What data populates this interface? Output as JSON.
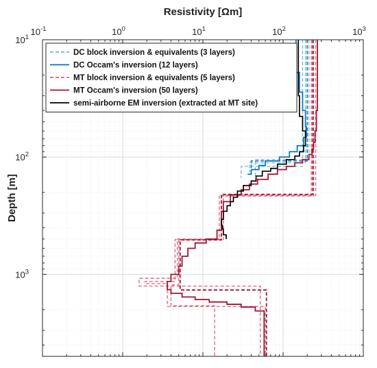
{
  "chart_data": {
    "type": "line",
    "xlabel": "Resistivity [Ωm]",
    "ylabel": "Depth [m]",
    "x_scale": "log",
    "y_scale": "log",
    "y_inverted": true,
    "xlim": [
      0.1,
      1000
    ],
    "ylim": [
      10,
      5000
    ],
    "x_ticks": [
      {
        "v": 0.1,
        "base": "10",
        "exp": "-1"
      },
      {
        "v": 1,
        "base": "10",
        "exp": "0"
      },
      {
        "v": 10,
        "base": "10",
        "exp": "1"
      },
      {
        "v": 100,
        "base": "10",
        "exp": "2"
      },
      {
        "v": 1000,
        "base": "10",
        "exp": "3"
      }
    ],
    "y_ticks": [
      {
        "v": 10,
        "base": "10",
        "exp": "1"
      },
      {
        "v": 100,
        "base": "10",
        "exp": "2"
      },
      {
        "v": 1000,
        "base": "10",
        "exp": "3"
      }
    ],
    "grid": true,
    "legend_position": "top-left",
    "colors": {
      "dc": "#0072bd",
      "dc_light": "#6fb7e0",
      "mt": "#a2142f",
      "mt_light": "#e0607a",
      "em": "#000000"
    },
    "series": [
      {
        "name": "DC block inversion & equivalents (3 layers)",
        "color": "#6fb7e0",
        "dash": true,
        "width": 1.3,
        "points": [
          [
            210,
            10
          ],
          [
            210,
            105
          ],
          [
            45,
            105
          ],
          [
            45,
            145
          ]
        ]
      },
      {
        "name": "",
        "color": "#6fb7e0",
        "dash": true,
        "width": 1.3,
        "legend": false,
        "points": [
          [
            190,
            10
          ],
          [
            190,
            112
          ],
          [
            38,
            112
          ],
          [
            38,
            135
          ]
        ]
      },
      {
        "name": "",
        "color": "#6fb7e0",
        "dash": true,
        "width": 1.3,
        "legend": false,
        "points": [
          [
            175,
            10
          ],
          [
            175,
            120
          ],
          [
            30,
            120
          ],
          [
            30,
            150
          ]
        ]
      },
      {
        "name": "",
        "color": "#0072bd",
        "dash": true,
        "width": 1.5,
        "legend": false,
        "points": [
          [
            200,
            10
          ],
          [
            200,
            108
          ],
          [
            40,
            108
          ],
          [
            40,
            142
          ]
        ]
      },
      {
        "name": "DC Occam's inversion (12 layers)",
        "color": "#0072bd",
        "dash": false,
        "width": 1.7,
        "points": [
          [
            145,
            10
          ],
          [
            145,
            14
          ],
          [
            135,
            14
          ],
          [
            135,
            19
          ],
          [
            160,
            19
          ],
          [
            160,
            28
          ],
          [
            175,
            28
          ],
          [
            175,
            40
          ],
          [
            190,
            40
          ],
          [
            190,
            55
          ],
          [
            195,
            55
          ],
          [
            195,
            68
          ],
          [
            180,
            68
          ],
          [
            180,
            80
          ],
          [
            150,
            80
          ],
          [
            150,
            90
          ],
          [
            120,
            90
          ],
          [
            120,
            100
          ],
          [
            90,
            100
          ],
          [
            90,
            108
          ],
          [
            60,
            108
          ],
          [
            60,
            118
          ],
          [
            50,
            118
          ],
          [
            50,
            128
          ],
          [
            40,
            128
          ],
          [
            40,
            140
          ],
          [
            36,
            140
          ]
        ]
      },
      {
        "name": "MT block inversion & equivalents (5 layers)",
        "color": "#e0607a",
        "dash": true,
        "width": 1.3,
        "points": [
          [
            255,
            10
          ],
          [
            255,
            212
          ],
          [
            16,
            212
          ],
          [
            16,
            500
          ],
          [
            4.8,
            500
          ],
          [
            4.8,
            1080
          ],
          [
            1.6,
            1080
          ],
          [
            1.6,
            1260
          ],
          [
            52,
            1260
          ],
          [
            52,
            5000
          ]
        ]
      },
      {
        "name": "",
        "color": "#e0607a",
        "dash": true,
        "width": 1.3,
        "legend": false,
        "points": [
          [
            225,
            10
          ],
          [
            225,
            210
          ],
          [
            18,
            210
          ],
          [
            18,
            505
          ],
          [
            4.5,
            505
          ],
          [
            4.5,
            1150
          ],
          [
            1.9,
            1150
          ],
          [
            1.9,
            1200
          ],
          [
            3.6,
            1200
          ],
          [
            3.6,
            1880
          ],
          [
            60,
            1880
          ],
          [
            60,
            5000
          ]
        ]
      },
      {
        "name": "",
        "color": "#e0607a",
        "dash": true,
        "width": 1.3,
        "legend": false,
        "points": [
          [
            240,
            10
          ],
          [
            240,
            215
          ],
          [
            17,
            215
          ],
          [
            17,
            510
          ],
          [
            5,
            510
          ],
          [
            5,
            1230
          ],
          [
            4,
            1230
          ],
          [
            4,
            1850
          ],
          [
            14,
            1850
          ],
          [
            14,
            5000
          ]
        ]
      },
      {
        "name": "",
        "color": "#a2142f",
        "dash": true,
        "width": 1.8,
        "legend": false,
        "points": [
          [
            235,
            10
          ],
          [
            235,
            208
          ],
          [
            17,
            208
          ],
          [
            17,
            508
          ],
          [
            5.2,
            508
          ],
          [
            5.2,
            1360
          ],
          [
            62,
            1360
          ],
          [
            62,
            5000
          ]
        ]
      },
      {
        "name": "MT Occam's inversion (50 layers)",
        "color": "#a2142f",
        "dash": false,
        "width": 1.8,
        "points": [
          [
            268,
            10
          ],
          [
            268,
            40
          ],
          [
            260,
            40
          ],
          [
            260,
            60
          ],
          [
            250,
            60
          ],
          [
            250,
            75
          ],
          [
            240,
            75
          ],
          [
            240,
            85
          ],
          [
            230,
            85
          ],
          [
            230,
            95
          ],
          [
            210,
            95
          ],
          [
            210,
            105
          ],
          [
            175,
            105
          ],
          [
            175,
            112
          ],
          [
            140,
            112
          ],
          [
            140,
            120
          ],
          [
            110,
            120
          ],
          [
            110,
            128
          ],
          [
            85,
            128
          ],
          [
            85,
            140
          ],
          [
            65,
            140
          ],
          [
            65,
            155
          ],
          [
            48,
            155
          ],
          [
            48,
            170
          ],
          [
            38,
            170
          ],
          [
            38,
            190
          ],
          [
            30,
            190
          ],
          [
            30,
            210
          ],
          [
            22,
            210
          ],
          [
            22,
            240
          ],
          [
            18,
            240
          ],
          [
            18,
            290
          ],
          [
            17,
            290
          ],
          [
            17,
            420
          ],
          [
            15,
            420
          ],
          [
            15,
            500
          ],
          [
            11,
            500
          ],
          [
            11,
            540
          ],
          [
            8,
            540
          ],
          [
            8,
            600
          ],
          [
            6.5,
            600
          ],
          [
            6.5,
            700
          ],
          [
            5.5,
            700
          ],
          [
            5.5,
            850
          ],
          [
            5,
            850
          ],
          [
            5,
            1000
          ],
          [
            4,
            1000
          ],
          [
            4,
            1150
          ],
          [
            3.6,
            1150
          ],
          [
            3.6,
            1350
          ],
          [
            4,
            1350
          ],
          [
            4,
            1450
          ],
          [
            5.5,
            1450
          ],
          [
            5.5,
            1560
          ],
          [
            8,
            1560
          ],
          [
            8,
            1640
          ],
          [
            12,
            1640
          ],
          [
            12,
            1720
          ],
          [
            20,
            1720
          ],
          [
            20,
            1800
          ],
          [
            30,
            1800
          ],
          [
            30,
            1900
          ],
          [
            45,
            1900
          ],
          [
            45,
            2050
          ],
          [
            58,
            2050
          ],
          [
            58,
            5000
          ]
        ]
      },
      {
        "name": "semi-airborne EM inversion (extracted at MT site)",
        "color": "#000000",
        "dash": false,
        "width": 1.7,
        "points": [
          [
            155,
            10
          ],
          [
            155,
            30
          ],
          [
            160,
            30
          ],
          [
            160,
            45
          ],
          [
            175,
            45
          ],
          [
            175,
            60
          ],
          [
            190,
            60
          ],
          [
            190,
            80
          ],
          [
            180,
            80
          ],
          [
            180,
            90
          ],
          [
            160,
            90
          ],
          [
            160,
            98
          ],
          [
            140,
            98
          ],
          [
            140,
            105
          ],
          [
            110,
            105
          ],
          [
            110,
            115
          ],
          [
            85,
            115
          ],
          [
            85,
            125
          ],
          [
            70,
            125
          ],
          [
            70,
            132
          ],
          [
            55,
            132
          ],
          [
            55,
            145
          ],
          [
            46,
            145
          ],
          [
            46,
            160
          ],
          [
            40,
            160
          ],
          [
            40,
            175
          ],
          [
            32,
            175
          ],
          [
            32,
            195
          ],
          [
            27,
            195
          ],
          [
            27,
            220
          ],
          [
            24,
            220
          ],
          [
            24,
            240
          ],
          [
            22,
            240
          ],
          [
            22,
            260
          ],
          [
            20,
            260
          ],
          [
            20,
            290
          ],
          [
            18,
            290
          ],
          [
            18,
            340
          ],
          [
            17,
            340
          ],
          [
            17,
            380
          ],
          [
            17.5,
            380
          ],
          [
            17.5,
            410
          ],
          [
            18,
            410
          ],
          [
            18,
            460
          ],
          [
            19.5,
            460
          ],
          [
            19.5,
            500
          ]
        ]
      }
    ]
  }
}
